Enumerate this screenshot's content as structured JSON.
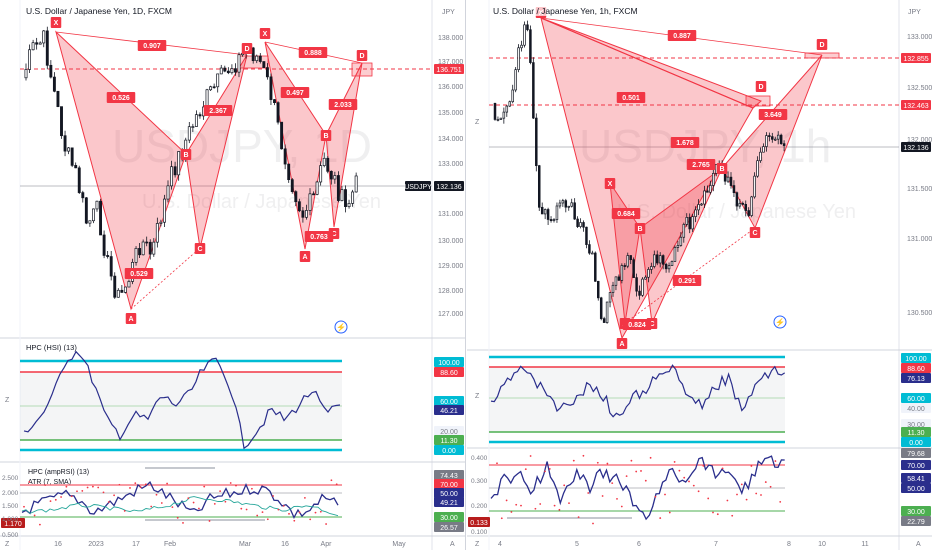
{
  "left": {
    "title": "U.S. Dollar / Japanese Yen, 1D, FXCM",
    "currency": "JPY",
    "watermark1": "USDJPY, 1D",
    "watermark2": "U.S. Dollar / Japanese Yen",
    "price_ticks": [
      "137.000",
      "136.000",
      "135.000",
      "134.000",
      "133.000",
      "132.000",
      "131.000",
      "130.000",
      "129.000",
      "128.000",
      "127.000"
    ],
    "price_tags": [
      {
        "text": "138.000",
        "kind": "plain"
      },
      {
        "text": "136.751",
        "kind": "red"
      },
      {
        "text": "132.136",
        "kind": "dark"
      },
      {
        "text": "USDJPY",
        "kind": "dark"
      }
    ],
    "pattern_points": [
      "X",
      "A",
      "B",
      "C",
      "D",
      "X",
      "A",
      "B",
      "C",
      "D"
    ],
    "ratios": [
      "0.907",
      "0.526",
      "0.529",
      "2.367",
      "0.888",
      "0.497",
      "2.033",
      "0.763"
    ],
    "hpc_title": "HPC (HSI) (13)",
    "hpc_ticks": [
      "100.00",
      "88.60",
      "60.00",
      "46.21",
      "20.00",
      "11.30",
      "0.00"
    ],
    "ind3_title": "HPC (ampRSI) (13)",
    "atr_title": "ATR (7, SMA)",
    "ind3_left_ticks": [
      "2.500",
      "2.000",
      "1.500",
      "1.170",
      "1.000",
      "0.500"
    ],
    "ind3_right_ticks": [
      "74.43",
      "70.00",
      "50.00",
      "49.21",
      "30.00",
      "26.57"
    ],
    "time_axis": [
      "16",
      "2023",
      "17",
      "Feb",
      "Mar",
      "16",
      "Apr",
      "May"
    ],
    "axis_corner": "A",
    "zoom_mark": "Z"
  },
  "right": {
    "title": "U.S. Dollar / Japanese Yen, 1h, FXCM",
    "currency": "JPY",
    "watermark1": "USDJPY, 1h",
    "watermark2": "U.S. Dollar / Japanese Yen",
    "price_ticks": [
      "133.000",
      "132.500",
      "132.000",
      "131.500",
      "131.000",
      "130.500"
    ],
    "price_tags": [
      {
        "text": "132.855",
        "kind": "red"
      },
      {
        "text": "132.463",
        "kind": "red"
      },
      {
        "text": "132.136",
        "kind": "dark"
      }
    ],
    "pattern_points": [
      "X",
      "A",
      "B",
      "C",
      "D",
      "X",
      "A",
      "B",
      "C",
      "D"
    ],
    "ratios": [
      "0.887",
      "0.501",
      "1.678",
      "0.684",
      "2.765",
      "0.824",
      "0.291",
      "3.649"
    ],
    "hpc_ticks": [
      "100.00",
      "88.60",
      "76.13",
      "60.00",
      "40.00",
      "30.00",
      "11.30",
      "0.00"
    ],
    "ind3_left_ticks": [
      "0.400",
      "0.300",
      "0.200",
      "0.133",
      "0.100"
    ],
    "ind3_right_ticks": [
      "79.68",
      "70.00",
      "58.41",
      "50.00",
      "30.00",
      "22.79"
    ],
    "time_axis": [
      "4",
      "5",
      "6",
      "7",
      "8",
      "10",
      "11"
    ],
    "axis_corner": "A",
    "zoom_mark": "Z"
  },
  "colors": {
    "bull": "#26a69a",
    "bear": "#ef5350",
    "candle": "#131722",
    "pattern_fill": "rgba(242,54,69,0.28)",
    "pattern_line": "#f23645",
    "hpc_line": "#2a2e8c",
    "cyan": "#00bcd4",
    "red_level": "#f23645",
    "green_level": "#4caf50"
  }
}
